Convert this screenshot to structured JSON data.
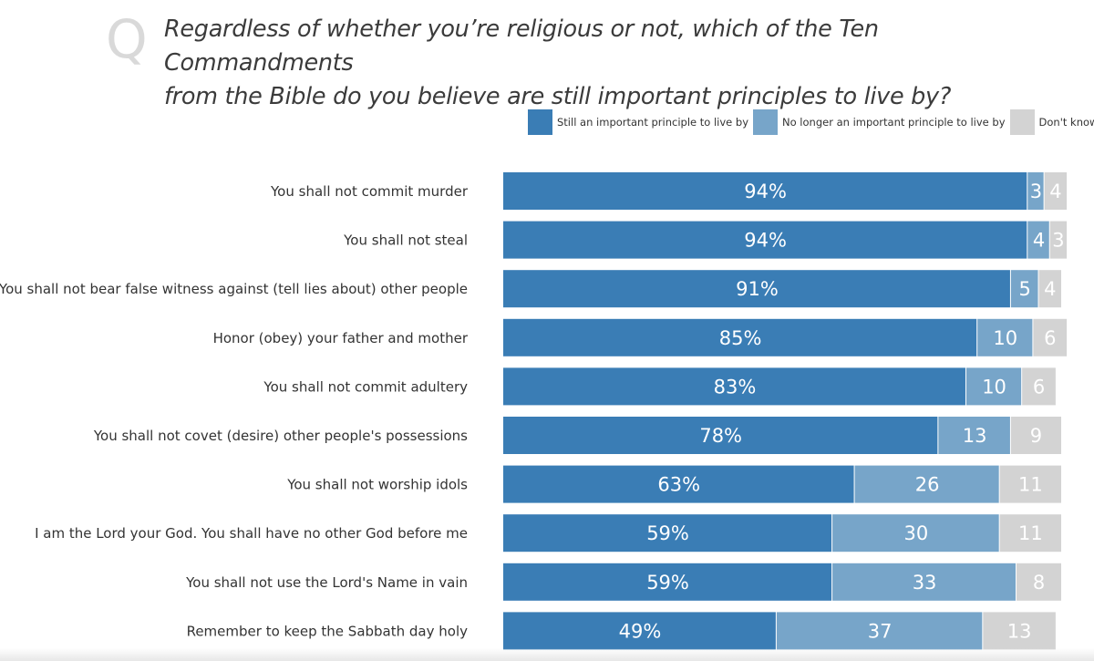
{
  "question": {
    "mark": "Q",
    "line1": "Regardless of whether you’re religious or not, which of the Ten Commandments",
    "line2": "from the Bible do you believe are still important principles to live by?"
  },
  "colors": {
    "still": "#3a7db5",
    "no_longer": "#77a5c9",
    "dont_know": "#d3d3d3"
  },
  "chart_data": {
    "type": "bar",
    "orientation": "horizontal",
    "stacked": true,
    "xlim": [
      0,
      100
    ],
    "legend_position": "top-right",
    "grid": false,
    "categories": [
      "You shall not commit murder",
      "You shall not steal",
      "You shall not bear false witness against (tell lies about) other people",
      "Honor (obey) your father and mother",
      "You shall not commit adultery",
      "You shall not covet (desire) other people's possessions",
      "You shall not worship idols",
      "I am the Lord your God. You shall have no other God before me",
      "You shall not use the Lord's Name in vain",
      "Remember to keep the Sabbath day holy"
    ],
    "series": [
      {
        "name": "Still an important principle to live by",
        "values": [
          94,
          94,
          91,
          85,
          83,
          78,
          63,
          59,
          59,
          49
        ],
        "labels": [
          "94%",
          "94%",
          "91%",
          "85%",
          "83%",
          "78%",
          "63%",
          "59%",
          "59%",
          "49%"
        ]
      },
      {
        "name": "No longer an important principle to live by",
        "values": [
          3,
          4,
          5,
          10,
          10,
          13,
          26,
          30,
          33,
          37
        ],
        "labels": [
          "3",
          "4",
          "5",
          "10",
          "10",
          "13",
          "26",
          "30",
          "33",
          "37"
        ]
      },
      {
        "name": "Don't know",
        "values": [
          4,
          3,
          4,
          6,
          6,
          9,
          11,
          11,
          8,
          13
        ],
        "labels": [
          "4",
          "3",
          "4",
          "6",
          "6",
          "9",
          "11",
          "11",
          "8",
          "13"
        ]
      }
    ]
  }
}
